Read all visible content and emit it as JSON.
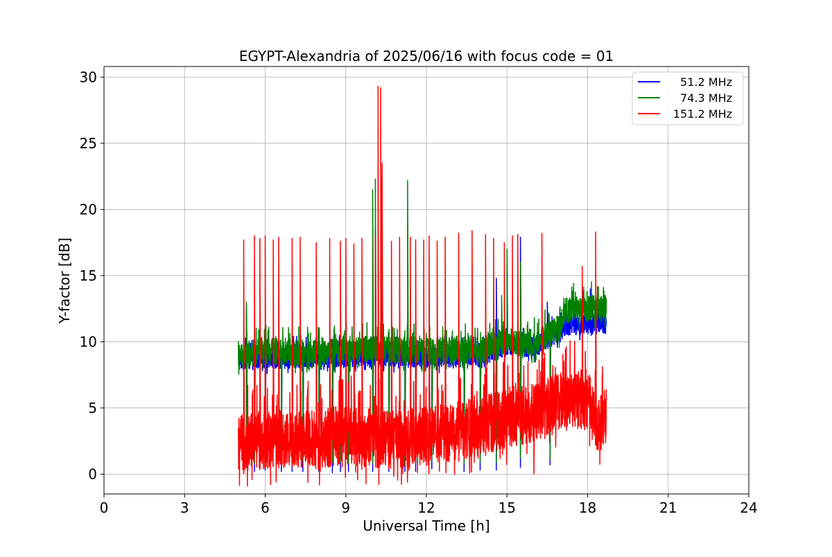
{
  "chart_data": {
    "type": "line",
    "title": "EGYPT-Alexandria of 2025/06/16 with focus code = 01",
    "xlabel": "Universal Time [h]",
    "ylabel": "Y-factor [dB]",
    "xlim": [
      0,
      24
    ],
    "ylim": [
      -1.5,
      30.8
    ],
    "x_ticks": [
      0,
      3,
      6,
      9,
      12,
      15,
      18,
      21,
      24
    ],
    "y_ticks": [
      0,
      5,
      10,
      15,
      20,
      25,
      30
    ],
    "grid": true,
    "legend_position": "top-right",
    "x_range_of_data": [
      5.0,
      18.7
    ],
    "series": [
      {
        "name": "51.2 MHz",
        "color": "#0000ff",
        "baseline": [
          [
            5.0,
            8.4
          ],
          [
            6.0,
            8.5
          ],
          [
            8.0,
            8.6
          ],
          [
            10.0,
            8.7
          ],
          [
            12.0,
            8.6
          ],
          [
            14.0,
            8.6
          ],
          [
            15.0,
            9.5
          ],
          [
            16.0,
            9.4
          ],
          [
            17.0,
            10.5
          ],
          [
            17.1,
            11.0
          ],
          [
            18.7,
            11.2
          ]
        ],
        "band_width": 1.6,
        "spikes": [
          [
            5.3,
            12.5
          ],
          [
            10.1,
            18.5
          ],
          [
            14.5,
            12.5
          ],
          [
            14.6,
            14.8
          ],
          [
            15.0,
            16.0
          ],
          [
            15.5,
            17.9
          ],
          [
            16.5,
            13.0
          ],
          [
            17.8,
            14.2
          ],
          [
            18.1,
            14.0
          ]
        ],
        "dips": [
          [
            5.3,
            0.5
          ],
          [
            5.6,
            0.2
          ],
          [
            6.0,
            0.3
          ],
          [
            6.6,
            0.2
          ],
          [
            7.0,
            0.2
          ],
          [
            7.4,
            0.2
          ],
          [
            8.0,
            0.2
          ],
          [
            8.5,
            0.1
          ],
          [
            8.8,
            0.2
          ],
          [
            9.1,
            0.2
          ],
          [
            10.0,
            0.2
          ],
          [
            10.6,
            0.2
          ],
          [
            11.2,
            0.2
          ],
          [
            11.6,
            0.2
          ],
          [
            12.2,
            0.4
          ],
          [
            13.4,
            0.2
          ],
          [
            14.0,
            0.3
          ],
          [
            14.6,
            0.3
          ],
          [
            15.5,
            0.5
          ],
          [
            16.6,
            0.7
          ]
        ]
      },
      {
        "name": "74.3 MHz",
        "color": "#008000",
        "baseline": [
          [
            5.0,
            8.6
          ],
          [
            6.0,
            9.0
          ],
          [
            8.0,
            8.8
          ],
          [
            10.0,
            9.2
          ],
          [
            12.0,
            9.0
          ],
          [
            14.0,
            9.1
          ],
          [
            15.0,
            9.8
          ],
          [
            16.0,
            9.6
          ],
          [
            17.0,
            10.8
          ],
          [
            17.1,
            12.0
          ],
          [
            18.7,
            12.3
          ]
        ],
        "band_width": 2.0,
        "spikes": [
          [
            5.3,
            13.0
          ],
          [
            10.0,
            21.5
          ],
          [
            10.1,
            22.3
          ],
          [
            10.35,
            22.4
          ],
          [
            11.3,
            22.2
          ],
          [
            14.8,
            13.5
          ],
          [
            15.0,
            17.0
          ],
          [
            15.5,
            16.0
          ]
        ],
        "dips": [
          [
            5.3,
            1.0
          ],
          [
            5.6,
            0.8
          ],
          [
            6.0,
            0.6
          ],
          [
            6.6,
            0.9
          ],
          [
            7.0,
            0.8
          ],
          [
            7.4,
            1.0
          ],
          [
            8.0,
            0.7
          ],
          [
            8.5,
            0.9
          ],
          [
            8.8,
            0.9
          ],
          [
            9.1,
            0.8
          ],
          [
            10.0,
            0.8
          ],
          [
            10.6,
            0.7
          ],
          [
            11.2,
            0.7
          ],
          [
            11.6,
            0.8
          ],
          [
            12.2,
            1.0
          ],
          [
            13.4,
            0.8
          ],
          [
            14.0,
            0.9
          ],
          [
            14.6,
            0.9
          ],
          [
            15.5,
            1.2
          ],
          [
            16.6,
            1.1
          ]
        ]
      },
      {
        "name": "151.2 MHz",
        "color": "#ff0000",
        "baseline": [
          [
            5.0,
            1.5
          ],
          [
            6.0,
            2.0
          ],
          [
            7.0,
            1.8
          ],
          [
            8.0,
            2.0
          ],
          [
            9.0,
            2.3
          ],
          [
            10.0,
            2.0
          ],
          [
            11.0,
            2.0
          ],
          [
            12.0,
            2.2
          ],
          [
            13.0,
            2.5
          ],
          [
            14.0,
            3.0
          ],
          [
            15.0,
            3.5
          ],
          [
            16.0,
            4.0
          ],
          [
            17.0,
            5.0
          ],
          [
            18.0,
            5.0
          ],
          [
            18.4,
            3.0
          ],
          [
            18.7,
            3.8
          ]
        ],
        "band_width": 4.5,
        "spikes": [
          [
            5.2,
            17.7
          ],
          [
            5.6,
            18.0
          ],
          [
            5.8,
            17.8
          ],
          [
            6.0,
            18.0
          ],
          [
            6.3,
            17.7
          ],
          [
            6.5,
            17.9
          ],
          [
            7.0,
            17.8
          ],
          [
            7.3,
            17.9
          ],
          [
            7.9,
            17.5
          ],
          [
            8.4,
            17.8
          ],
          [
            8.8,
            17.6
          ],
          [
            9.0,
            17.8
          ],
          [
            9.3,
            17.4
          ],
          [
            9.6,
            17.8
          ],
          [
            10.1,
            18.0
          ],
          [
            10.2,
            29.3
          ],
          [
            10.3,
            29.2
          ],
          [
            10.35,
            23.5
          ],
          [
            10.7,
            17.6
          ],
          [
            11.0,
            17.9
          ],
          [
            11.4,
            17.9
          ],
          [
            11.6,
            17.7
          ],
          [
            11.9,
            17.7
          ],
          [
            12.1,
            18.0
          ],
          [
            12.4,
            17.6
          ],
          [
            12.7,
            17.9
          ],
          [
            13.2,
            18.2
          ],
          [
            13.7,
            18.4
          ],
          [
            14.2,
            18.1
          ],
          [
            14.5,
            17.8
          ],
          [
            14.9,
            17.5
          ],
          [
            15.2,
            18.0
          ],
          [
            15.4,
            18.1
          ],
          [
            16.3,
            18.2
          ],
          [
            17.8,
            15.7
          ],
          [
            18.3,
            18.3
          ]
        ],
        "dips": [
          [
            16.0,
            0.0
          ]
        ]
      }
    ]
  }
}
